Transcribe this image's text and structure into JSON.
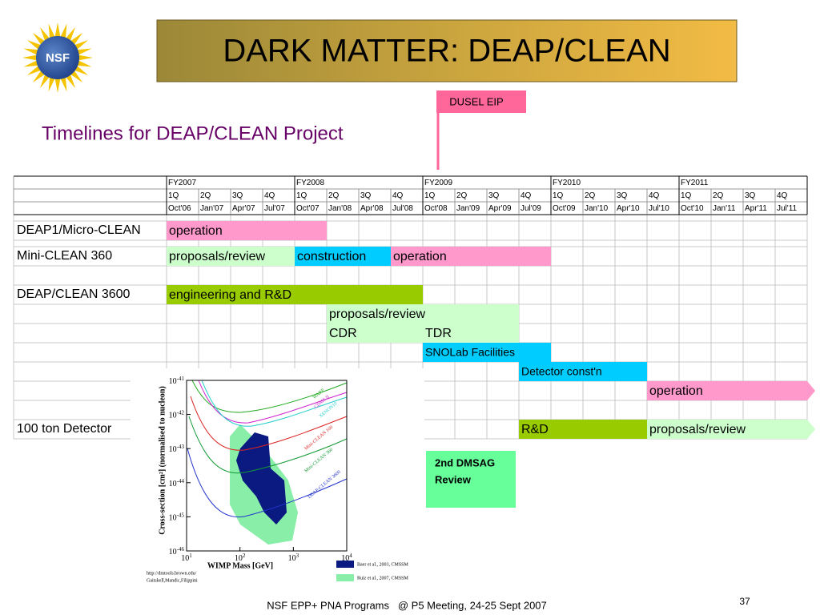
{
  "logo": {
    "text": "NSF"
  },
  "title": "DARK MATTER: DEAP/CLEAN",
  "subtitle": "Timelines for DEAP/CLEAN Project",
  "milestone": "DUSEL EIP",
  "review_box": [
    "2nd DMSAG",
    "Review"
  ],
  "timeline": {
    "fiscal_years": [
      "FY2007",
      "FY2008",
      "FY2009",
      "FY2010",
      "FY2011"
    ],
    "quarters": [
      "1Q",
      "2Q",
      "3Q",
      "4Q",
      "1Q",
      "2Q",
      "3Q",
      "4Q",
      "1Q",
      "2Q",
      "3Q",
      "4Q",
      "1Q",
      "2Q",
      "3Q",
      "4Q",
      "1Q",
      "2Q",
      "3Q",
      "4Q"
    ],
    "dates": [
      "Oct'06",
      "Jan'07",
      "Apr'07",
      "Jul'07",
      "Oct'07",
      "Jan'08",
      "Apr'08",
      "Jul'08",
      "Oct'08",
      "Jan'09",
      "Apr'09",
      "Jul'09",
      "Oct'09",
      "Jan'10",
      "Apr'10",
      "Jul'10",
      "Oct'10",
      "Jan'11",
      "Apr'11",
      "Jul'11"
    ],
    "rows": [
      {
        "label": "DEAP1/Micro-CLEAN",
        "bars": [
          {
            "label": "operation",
            "from": "Oct'06",
            "to": "Oct'07",
            "color": "#ff99cc"
          }
        ]
      },
      {
        "label": "Mini-CLEAN 360",
        "bars": [
          {
            "label": "proposals/review",
            "from": "Oct'06",
            "to": "Jul'07",
            "color": "#ccffcc"
          },
          {
            "label": "construction",
            "from": "Oct'07",
            "to": "Apr'08",
            "color": "#00ccff"
          },
          {
            "label": "operation",
            "from": "Jul'08",
            "to": "Jul'09",
            "color": "#ff99cc"
          }
        ]
      },
      {
        "label": "DEAP/CLEAN 3600",
        "bars": [
          {
            "label": "engineering and R&D",
            "from": "Oct'06",
            "to": "Jul'08",
            "color": "#99cc00"
          }
        ]
      },
      {
        "bars": [
          {
            "label": "proposals/review",
            "from": "Jan'08",
            "to": "Apr'09",
            "color": "#ccffcc"
          }
        ]
      },
      {
        "bars": [
          {
            "label": "CDR",
            "from": "Jan'08",
            "to": "Jul'08",
            "color": "#ccffcc"
          },
          {
            "label": "TDR",
            "from": "Oct'08",
            "to": "Apr'09",
            "color": "#ccffcc"
          }
        ]
      },
      {
        "bars": [
          {
            "label": "SNOLab Facilities",
            "from": "Oct'08",
            "to": "Jul'09",
            "color": "#00ccff"
          }
        ]
      },
      {
        "bars": [
          {
            "label": "Detector const'n",
            "from": "Jul'09",
            "to": "Apr'10",
            "color": "#00ccff"
          }
        ]
      },
      {
        "bars": [
          {
            "label": "operation",
            "from": "Jul'10",
            "to": "Jul'11",
            "color": "#ff99cc",
            "arrow": true
          }
        ]
      },
      {
        "label": "100 ton Detector",
        "bars": [
          {
            "label": "R&D",
            "from": "Jul'09",
            "to": "Apr'10",
            "color": "#99cc00"
          },
          {
            "label": "proposals/review",
            "from": "Jul'10",
            "to": "Jul'11",
            "color": "#ccffcc",
            "arrow": true
          }
        ]
      }
    ]
  },
  "plot": {
    "y_label": "Cross-section [cm²] (normalised to nucleon)",
    "x_label": "WIMP Mass [GeV]",
    "x_ticks": [
      {
        "base": "10",
        "exp": "1"
      },
      {
        "base": "10",
        "exp": "2"
      },
      {
        "base": "10",
        "exp": "3"
      },
      {
        "base": "10",
        "exp": "4"
      }
    ],
    "y_ticks": [
      {
        "base": "10",
        "exp": "-41"
      },
      {
        "base": "10",
        "exp": "-42"
      },
      {
        "base": "10",
        "exp": "-43"
      },
      {
        "base": "10",
        "exp": "-44"
      },
      {
        "base": "10",
        "exp": "-45"
      },
      {
        "base": "10",
        "exp": "-46"
      }
    ],
    "curve_labels": [
      "WARP",
      "CDMS II",
      "XENON10",
      "Mini-CLEAN 100",
      "Mini-CLEAN 360",
      "DEAP-CLEAN 3600"
    ],
    "legend": [
      "Baer et al., 2003, CMSSM",
      "Ruiz et al., 2007, CMSSM"
    ],
    "credit": [
      "http://dmtools.brown.edu/",
      "Gaitskell,Mandic,Filippini"
    ]
  },
  "footer": "NSF EPP+ PNA Programs   @ P5 Meeting, 24-25 Sept 2007",
  "page_number": "37"
}
